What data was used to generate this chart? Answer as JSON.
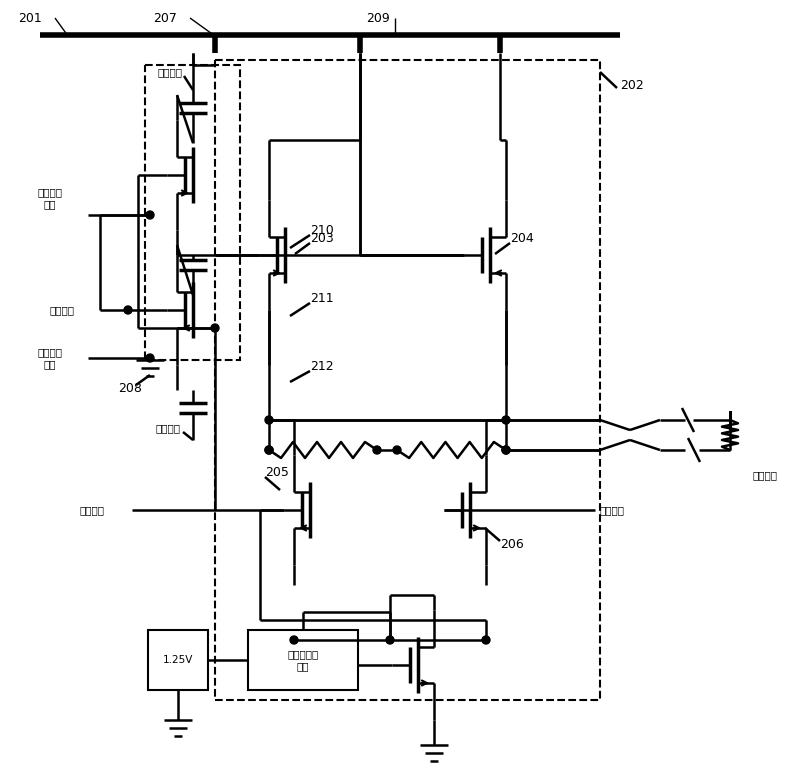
{
  "bg": "#ffffff",
  "lc": "#000000",
  "lw": 1.8,
  "lwt": 4.0,
  "fs": 7.5,
  "fsl": 9.0,
  "labels": {
    "201": "201",
    "202": "202",
    "207": "207",
    "208": "208",
    "209": "209",
    "210": "210",
    "211": "211",
    "212": "212",
    "203": "203",
    "204": "204",
    "205": "205",
    "206": "206",
    "外部负载": "外部负载",
    "1.25V": "1.25V",
    "第二信号1": "第二信号",
    "第一偏置电压": "第一偏置\n电压",
    "第二偏置电压": "第二偏置\n电压",
    "第一信号1": "第一信号",
    "第二信号2": "第二信号",
    "第二信号3": "第二信号",
    "第一信号2": "第一信号",
    "共模负反馈电路": "共模负反馈\n电路"
  }
}
